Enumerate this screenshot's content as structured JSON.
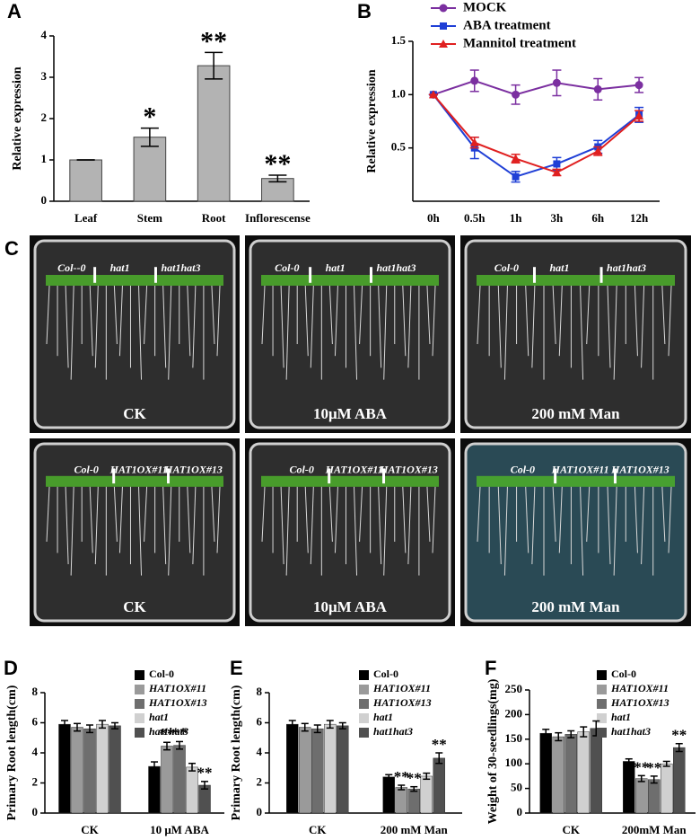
{
  "chart_data": [
    {
      "panel": "A",
      "type": "bar",
      "ylabel": "Relative expression",
      "categories": [
        "Leaf",
        "Stem",
        "Root",
        "Inflorescense"
      ],
      "values": [
        1,
        1.55,
        3.28,
        0.55
      ],
      "errors": [
        0,
        0.22,
        0.32,
        0.08
      ],
      "annotations": [
        null,
        "*",
        "**",
        "**"
      ],
      "color": "#b3b3b3",
      "ylim": [
        0,
        4
      ],
      "yticks": [
        0,
        1,
        2,
        3,
        4
      ]
    },
    {
      "panel": "B",
      "type": "line",
      "ylabel": "Relative expression",
      "categories": [
        "0h",
        "0.5h",
        "1h",
        "3h",
        "6h",
        "12h"
      ],
      "series": [
        {
          "name": "MOCK",
          "color": "#7b2fa0",
          "marker": "circle",
          "values": [
            1,
            1.13,
            1.0,
            1.11,
            1.05,
            1.09
          ],
          "errors": [
            0,
            0.1,
            0.09,
            0.12,
            0.1,
            0.07
          ]
        },
        {
          "name": "ABA treatment",
          "color": "#1f3fd6",
          "marker": "square",
          "values": [
            1,
            0.5,
            0.23,
            0.35,
            0.51,
            0.81
          ],
          "errors": [
            0,
            0.1,
            0.05,
            0.06,
            0.06,
            0.07
          ]
        },
        {
          "name": "Mannitol treatment",
          "color": "#e02020",
          "marker": "triangle",
          "values": [
            1,
            0.55,
            0.4,
            0.27,
            0.47,
            0.8
          ],
          "errors": [
            0,
            0.05,
            0.04,
            0.03,
            0.04,
            0.05
          ]
        }
      ],
      "ylim": [
        0,
        1.5
      ],
      "yticks": [
        0.5,
        {
          "value": 1,
          "label": "1.0"
        },
        1.5
      ]
    },
    {
      "panel": "D",
      "type": "grouped_bar",
      "ylabel": "Primary Root length(cm)",
      "categories": [
        "CK",
        "10 μM ABA"
      ],
      "series": [
        {
          "name": "Col-0",
          "color": "#000000",
          "values": [
            5.9,
            3.1
          ],
          "errors": [
            0.25,
            0.3
          ],
          "annotations": [
            null,
            null
          ]
        },
        {
          "name": "HAT1OX#11",
          "color": "#9a9a9a",
          "values": [
            5.7,
            4.45
          ],
          "errors": [
            0.25,
            0.25
          ],
          "annotations": [
            null,
            "**"
          ]
        },
        {
          "name": "HAT1OX#13",
          "color": "#6e6e6e",
          "values": [
            5.6,
            4.5
          ],
          "errors": [
            0.25,
            0.25
          ],
          "annotations": [
            null,
            "**"
          ]
        },
        {
          "name": "hat1",
          "color": "#d0d0d0",
          "values": [
            5.9,
            3.05
          ],
          "errors": [
            0.25,
            0.25
          ],
          "annotations": [
            null,
            null
          ]
        },
        {
          "name": "hat1hat3",
          "color": "#505050",
          "values": [
            5.8,
            1.85
          ],
          "errors": [
            0.2,
            0.25
          ],
          "annotations": [
            null,
            "**"
          ]
        }
      ],
      "ylim": [
        0,
        8
      ],
      "yticks": [
        0,
        2,
        4,
        6,
        8
      ]
    },
    {
      "panel": "E",
      "type": "grouped_bar",
      "ylabel": "Primary Root length(cm)",
      "categories": [
        "CK",
        "200 mM Man"
      ],
      "series": [
        {
          "name": "Col-0",
          "color": "#000000",
          "values": [
            5.9,
            2.4
          ],
          "errors": [
            0.25,
            0.15
          ],
          "annotations": [
            null,
            null
          ]
        },
        {
          "name": "HAT1OX#11",
          "color": "#9a9a9a",
          "values": [
            5.7,
            1.7
          ],
          "errors": [
            0.25,
            0.15
          ],
          "annotations": [
            null,
            "**"
          ]
        },
        {
          "name": "HAT1OX#13",
          "color": "#6e6e6e",
          "values": [
            5.6,
            1.6
          ],
          "errors": [
            0.25,
            0.15
          ],
          "annotations": [
            null,
            "**"
          ]
        },
        {
          "name": "hat1",
          "color": "#d0d0d0",
          "values": [
            5.9,
            2.45
          ],
          "errors": [
            0.25,
            0.2
          ],
          "annotations": [
            null,
            null
          ]
        },
        {
          "name": "hat1hat3",
          "color": "#505050",
          "values": [
            5.8,
            3.65
          ],
          "errors": [
            0.2,
            0.35
          ],
          "annotations": [
            null,
            "**"
          ]
        }
      ],
      "ylim": [
        0,
        8
      ],
      "yticks": [
        0,
        2,
        4,
        6,
        8
      ]
    },
    {
      "panel": "F",
      "type": "grouped_bar",
      "ylabel": "Weight of 30-seedlings(mg)",
      "categories": [
        "CK",
        "200mM Man"
      ],
      "series": [
        {
          "name": "Col-0",
          "color": "#000000",
          "values": [
            162,
            105
          ],
          "errors": [
            8,
            5
          ],
          "annotations": [
            null,
            null
          ]
        },
        {
          "name": "HAT1OX#11",
          "color": "#9a9a9a",
          "values": [
            155,
            70
          ],
          "errors": [
            8,
            6
          ],
          "annotations": [
            null,
            "**"
          ]
        },
        {
          "name": "HAT1OX#13",
          "color": "#6e6e6e",
          "values": [
            160,
            68
          ],
          "errors": [
            7,
            7
          ],
          "annotations": [
            null,
            "**"
          ]
        },
        {
          "name": "hat1",
          "color": "#d0d0d0",
          "values": [
            165,
            100
          ],
          "errors": [
            10,
            5
          ],
          "annotations": [
            null,
            null
          ]
        },
        {
          "name": "hat1hat3",
          "color": "#505050",
          "values": [
            172,
            133
          ],
          "errors": [
            15,
            8
          ],
          "annotations": [
            null,
            "**"
          ]
        }
      ],
      "ylim": [
        0,
        250
      ],
      "yticks": [
        0,
        50,
        100,
        150,
        200,
        250
      ]
    }
  ],
  "photos": {
    "panel": "C",
    "plates": [
      {
        "genotypes": [
          "Col--0",
          "hat1",
          "hat1hat3"
        ],
        "treatment": "CK"
      },
      {
        "genotypes": [
          "Col-0",
          "hat1",
          "hat1hat3"
        ],
        "treatment": "10μM ABA"
      },
      {
        "genotypes": [
          "Col-0",
          "hat1",
          "hat1hat3"
        ],
        "treatment": "200 mM Man"
      },
      {
        "genotypes": [
          "Col-0",
          "HAT1OX#11",
          "HAT1OX#13"
        ],
        "treatment": "CK"
      },
      {
        "genotypes": [
          "Col-0",
          "HAT1OX#11",
          "HAT1OX#13"
        ],
        "treatment": "10μM ABA"
      },
      {
        "genotypes": [
          "Col-0",
          "HAT1OX#11",
          "HAT1OX#13"
        ],
        "treatment": "200 mM Man"
      }
    ]
  }
}
